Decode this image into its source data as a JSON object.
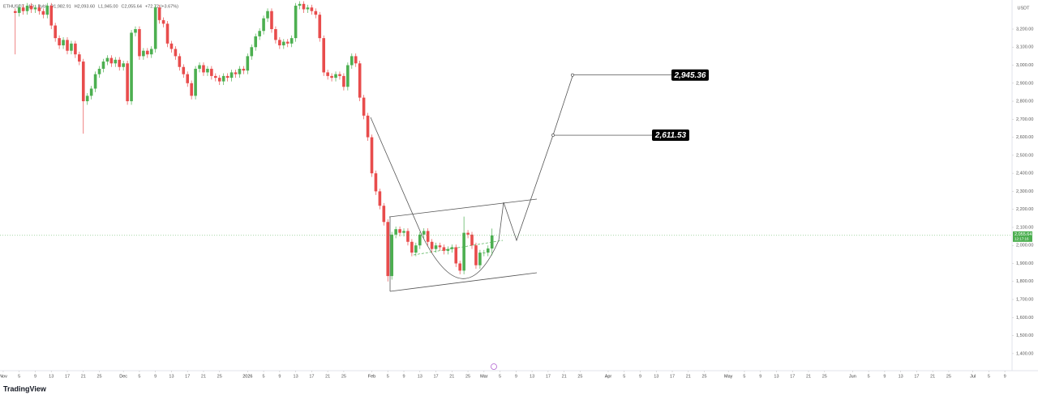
{
  "chart_data": {
    "type": "candlestick",
    "title": "ETHUSDT · 1D · Bybit",
    "ohlc_header": [
      "O1,982.91",
      "H2,093.60",
      "L1,945.00",
      "C2,055.64",
      "+72.72 (+3.67%)"
    ],
    "currency": "USDT",
    "up_color": "#4caf50",
    "down_color": "#e84c4c",
    "x": [
      3,
      4,
      5,
      6,
      7,
      8,
      9,
      10,
      11,
      12,
      13,
      14,
      15,
      16,
      17,
      18,
      19,
      20,
      21,
      22,
      23,
      24,
      25,
      26,
      27,
      28,
      29,
      30,
      31,
      32,
      33,
      34,
      35,
      36,
      37,
      38,
      39,
      40,
      41,
      42,
      43,
      44,
      45,
      46,
      47,
      48,
      49,
      50,
      51,
      52,
      53,
      54,
      55,
      56,
      57,
      58,
      59,
      60,
      61,
      62,
      63,
      64,
      65,
      66,
      67,
      68,
      69,
      70,
      71,
      72,
      73,
      74,
      75,
      76,
      77,
      78,
      79,
      80,
      81,
      82,
      83,
      84,
      85,
      86,
      87,
      88,
      89,
      90,
      91,
      92,
      93,
      94,
      95,
      96,
      97,
      98,
      99,
      100,
      101,
      102,
      103,
      104,
      105,
      106,
      107,
      108,
      109,
      110,
      111,
      112,
      113,
      114,
      115,
      116,
      117,
      118,
      119,
      120,
      121,
      122
    ],
    "open": [
      3300,
      3290,
      3320,
      3300,
      3330,
      3310,
      3320,
      3300,
      3280,
      3330,
      3220,
      3150,
      3110,
      3140,
      3080,
      3120,
      3060,
      3020,
      2800,
      2830,
      2870,
      2950,
      2980,
      3020,
      3040,
      3010,
      3030,
      2990,
      3010,
      2800,
      3180,
      3200,
      3050,
      3080,
      3060,
      3090,
      3320,
      3250,
      3230,
      3120,
      3090,
      3050,
      2990,
      2950,
      2900,
      2830,
      2980,
      3000,
      2960,
      2980,
      2940,
      2930,
      2910,
      2940,
      2930,
      2960,
      2950,
      2980,
      2970,
      3050,
      3100,
      3160,
      3190,
      3260,
      3300,
      3200,
      3140,
      3110,
      3130,
      3120,
      3150,
      3330,
      3340,
      3310,
      3320,
      3300,
      3280,
      3150,
      2960,
      2940,
      2930,
      2950,
      2940,
      2880,
      3000,
      3050,
      3010,
      2820,
      2720,
      2600,
      2400,
      2300,
      2220,
      2130,
      1830,
      2060,
      2090,
      2070,
      2080,
      2020,
      1960,
      2000,
      2060,
      2080,
      2020,
      1980,
      2000,
      1990,
      1970,
      1980,
      1990,
      1900,
      1860,
      2070,
      2060,
      2000,
      1890,
      1960,
      1960,
      1982.91
    ],
    "high": [
      3315,
      3335,
      3335,
      3345,
      3345,
      3335,
      3335,
      3315,
      3345,
      3345,
      3235,
      3165,
      3155,
      3155,
      3135,
      3135,
      3075,
      3035,
      2845,
      2885,
      2965,
      2995,
      3035,
      3055,
      3055,
      3045,
      3045,
      3025,
      3025,
      3195,
      3215,
      3215,
      3095,
      3095,
      3105,
      3335,
      3335,
      3265,
      3245,
      3135,
      3105,
      3065,
      3005,
      2965,
      2915,
      2995,
      3015,
      3015,
      2995,
      2995,
      2955,
      2945,
      2955,
      2955,
      2975,
      2975,
      2995,
      2995,
      3065,
      3115,
      3175,
      3205,
      3275,
      3315,
      3315,
      3215,
      3155,
      3145,
      3145,
      3165,
      3345,
      3355,
      3355,
      3335,
      3335,
      3315,
      3295,
      3165,
      2975,
      2955,
      2965,
      2965,
      2955,
      3015,
      3065,
      3065,
      3025,
      2835,
      2735,
      2615,
      2415,
      2315,
      2235,
      2145,
      2075,
      2105,
      2105,
      2095,
      2095,
      2035,
      2015,
      2075,
      2095,
      2095,
      2035,
      2015,
      2015,
      2005,
      1995,
      2005,
      2005,
      1915,
      2160,
      2085,
      2075,
      2015,
      1975,
      1975,
      2000,
      2093.6
    ],
    "low": [
      3060,
      3270,
      3280,
      3280,
      3290,
      3290,
      3280,
      3260,
      3260,
      3200,
      3130,
      3090,
      3090,
      3060,
      3060,
      3040,
      3000,
      2620,
      2780,
      2810,
      2850,
      2930,
      2960,
      3000,
      2990,
      2990,
      2970,
      2970,
      2780,
      2780,
      3160,
      3030,
      3030,
      3040,
      3040,
      3070,
      3230,
      3210,
      3100,
      3070,
      3030,
      2970,
      2930,
      2880,
      2810,
      2810,
      2960,
      2940,
      2940,
      2920,
      2910,
      2890,
      2890,
      2910,
      2910,
      2930,
      2930,
      2950,
      2950,
      3030,
      3080,
      3140,
      3170,
      3240,
      3180,
      3120,
      3090,
      3090,
      3100,
      3100,
      3130,
      3310,
      3290,
      3290,
      3280,
      3260,
      3130,
      2940,
      2920,
      2910,
      2910,
      2920,
      2860,
      2860,
      2980,
      2990,
      2800,
      2700,
      2580,
      2380,
      2280,
      2200,
      2110,
      1800,
      1810,
      2040,
      2050,
      2050,
      2000,
      1940,
      1940,
      1980,
      2040,
      2000,
      1960,
      1960,
      1970,
      1950,
      1950,
      1960,
      1880,
      1840,
      1840,
      2040,
      1980,
      1870,
      1870,
      1940,
      1940,
      1945
    ],
    "close": [
      3290,
      3320,
      3300,
      3330,
      3310,
      3320,
      3300,
      3280,
      3330,
      3220,
      3150,
      3110,
      3140,
      3080,
      3120,
      3060,
      3020,
      2800,
      2830,
      2870,
      2950,
      2980,
      3020,
      3040,
      3010,
      3030,
      2990,
      3010,
      2800,
      3180,
      3200,
      3050,
      3080,
      3060,
      3090,
      3320,
      3250,
      3230,
      3120,
      3090,
      3050,
      2990,
      2950,
      2900,
      2830,
      2980,
      3000,
      2960,
      2980,
      2940,
      2930,
      2910,
      2940,
      2930,
      2960,
      2950,
      2980,
      2970,
      3050,
      3100,
      3160,
      3190,
      3260,
      3300,
      3200,
      3140,
      3110,
      3130,
      3120,
      3150,
      3330,
      3340,
      3310,
      3320,
      3300,
      3280,
      3150,
      2960,
      2940,
      2930,
      2950,
      2940,
      2880,
      3000,
      3050,
      3010,
      2820,
      2720,
      2600,
      2400,
      2300,
      2220,
      2130,
      1830,
      2060,
      2090,
      2070,
      2080,
      2020,
      1960,
      2000,
      2060,
      2080,
      2020,
      1980,
      2000,
      1990,
      1970,
      1980,
      1990,
      1900,
      1860,
      2070,
      2060,
      2000,
      1890,
      1960,
      1960,
      1982.91,
      2055.64
    ],
    "xlim": [
      -0.8,
      251.8
    ],
    "xticks": [
      {
        "value": 0,
        "label": "Nov"
      },
      {
        "value": 4,
        "label": "5"
      },
      {
        "value": 8,
        "label": "9"
      },
      {
        "value": 12,
        "label": "13"
      },
      {
        "value": 16,
        "label": "17"
      },
      {
        "value": 20,
        "label": "21"
      },
      {
        "value": 24,
        "label": "25"
      },
      {
        "value": 30,
        "label": "Dec"
      },
      {
        "value": 34,
        "label": "5"
      },
      {
        "value": 38,
        "label": "9"
      },
      {
        "value": 42,
        "label": "13"
      },
      {
        "value": 46,
        "label": "17"
      },
      {
        "value": 50,
        "label": "21"
      },
      {
        "value": 54,
        "label": "25"
      },
      {
        "value": 61,
        "label": "2026"
      },
      {
        "value": 65,
        "label": "5"
      },
      {
        "value": 69,
        "label": "9"
      },
      {
        "value": 73,
        "label": "13"
      },
      {
        "value": 77,
        "label": "17"
      },
      {
        "value": 81,
        "label": "21"
      },
      {
        "value": 85,
        "label": "25"
      },
      {
        "value": 92,
        "label": "Feb"
      },
      {
        "value": 96,
        "label": "5"
      },
      {
        "value": 100,
        "label": "9"
      },
      {
        "value": 104,
        "label": "13"
      },
      {
        "value": 108,
        "label": "17"
      },
      {
        "value": 112,
        "label": "21"
      },
      {
        "value": 116,
        "label": "25"
      },
      {
        "value": 120,
        "label": "Mar"
      },
      {
        "value": 124,
        "label": "5"
      },
      {
        "value": 128,
        "label": "9"
      },
      {
        "value": 132,
        "label": "13"
      },
      {
        "value": 136,
        "label": "17"
      },
      {
        "value": 140,
        "label": "21"
      },
      {
        "value": 144,
        "label": "25"
      },
      {
        "value": 151,
        "label": "Apr"
      },
      {
        "value": 155,
        "label": "5"
      },
      {
        "value": 159,
        "label": "9"
      },
      {
        "value": 163,
        "label": "13"
      },
      {
        "value": 167,
        "label": "17"
      },
      {
        "value": 171,
        "label": "21"
      },
      {
        "value": 175,
        "label": "25"
      },
      {
        "value": 181,
        "label": "May"
      },
      {
        "value": 185,
        "label": "5"
      },
      {
        "value": 189,
        "label": "9"
      },
      {
        "value": 193,
        "label": "13"
      },
      {
        "value": 197,
        "label": "17"
      },
      {
        "value": 201,
        "label": "21"
      },
      {
        "value": 205,
        "label": "25"
      },
      {
        "value": 212,
        "label": "Jun"
      },
      {
        "value": 216,
        "label": "5"
      },
      {
        "value": 220,
        "label": "9"
      },
      {
        "value": 224,
        "label": "13"
      },
      {
        "value": 228,
        "label": "17"
      },
      {
        "value": 232,
        "label": "21"
      },
      {
        "value": 236,
        "label": "25"
      },
      {
        "value": 242,
        "label": "Jul"
      },
      {
        "value": 246,
        "label": "5"
      },
      {
        "value": 250,
        "label": "9"
      }
    ],
    "ylim": [
      1305,
      3361.6
    ],
    "yticks": [
      {
        "value": 1400,
        "label": "1,400.00"
      },
      {
        "value": 1500,
        "label": "1,500.00"
      },
      {
        "value": 1600,
        "label": "1,600.00"
      },
      {
        "value": 1700,
        "label": "1,700.00"
      },
      {
        "value": 1800,
        "label": "1,800.00"
      },
      {
        "value": 1900,
        "label": "1,900.00"
      },
      {
        "value": 2000,
        "label": "2,000.00"
      },
      {
        "value": 2100,
        "label": "2,100.00"
      },
      {
        "value": 2200,
        "label": "2,200.00"
      },
      {
        "value": 2300,
        "label": "2,300.00"
      },
      {
        "value": 2400,
        "label": "2,400.00"
      },
      {
        "value": 2500,
        "label": "2,500.00"
      },
      {
        "value": 2600,
        "label": "2,600.00"
      },
      {
        "value": 2700,
        "label": "2,700.00"
      },
      {
        "value": 2800,
        "label": "2,800.00"
      },
      {
        "value": 2900,
        "label": "2,900.00"
      },
      {
        "value": 3000,
        "label": "3,000.00"
      },
      {
        "value": 3100,
        "label": "3,100.00"
      },
      {
        "value": 3200,
        "label": "3,200.00"
      }
    ],
    "last_price": {
      "value": 2055.64,
      "label": "2,055.64",
      "countdown": "12:17:16"
    },
    "annotations": [
      {
        "value": 2945.36,
        "label": "2,945.36"
      },
      {
        "value": 2611.53,
        "label": "2,611.53"
      }
    ],
    "brand": "TradingView"
  }
}
